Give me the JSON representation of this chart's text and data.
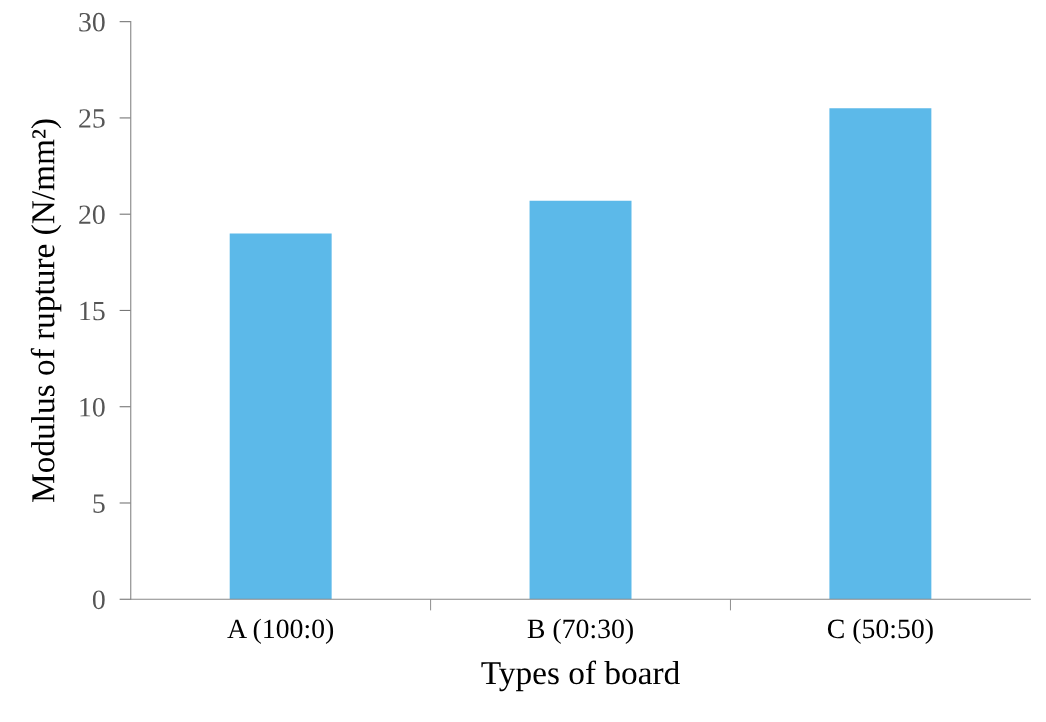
{
  "chart_data": {
    "type": "bar",
    "xlabel": "Types of board",
    "ylabel": "Modulus of rupture (N/mm²)",
    "categories": [
      "A (100:0)",
      "B (70:30)",
      "C (50:50)"
    ],
    "values": [
      19.0,
      20.7,
      25.5
    ],
    "color": "#5cb9e9",
    "ylim": [
      0,
      30
    ],
    "yticks": [
      0,
      5,
      10,
      15,
      20,
      25,
      30
    ],
    "grid": false
  }
}
